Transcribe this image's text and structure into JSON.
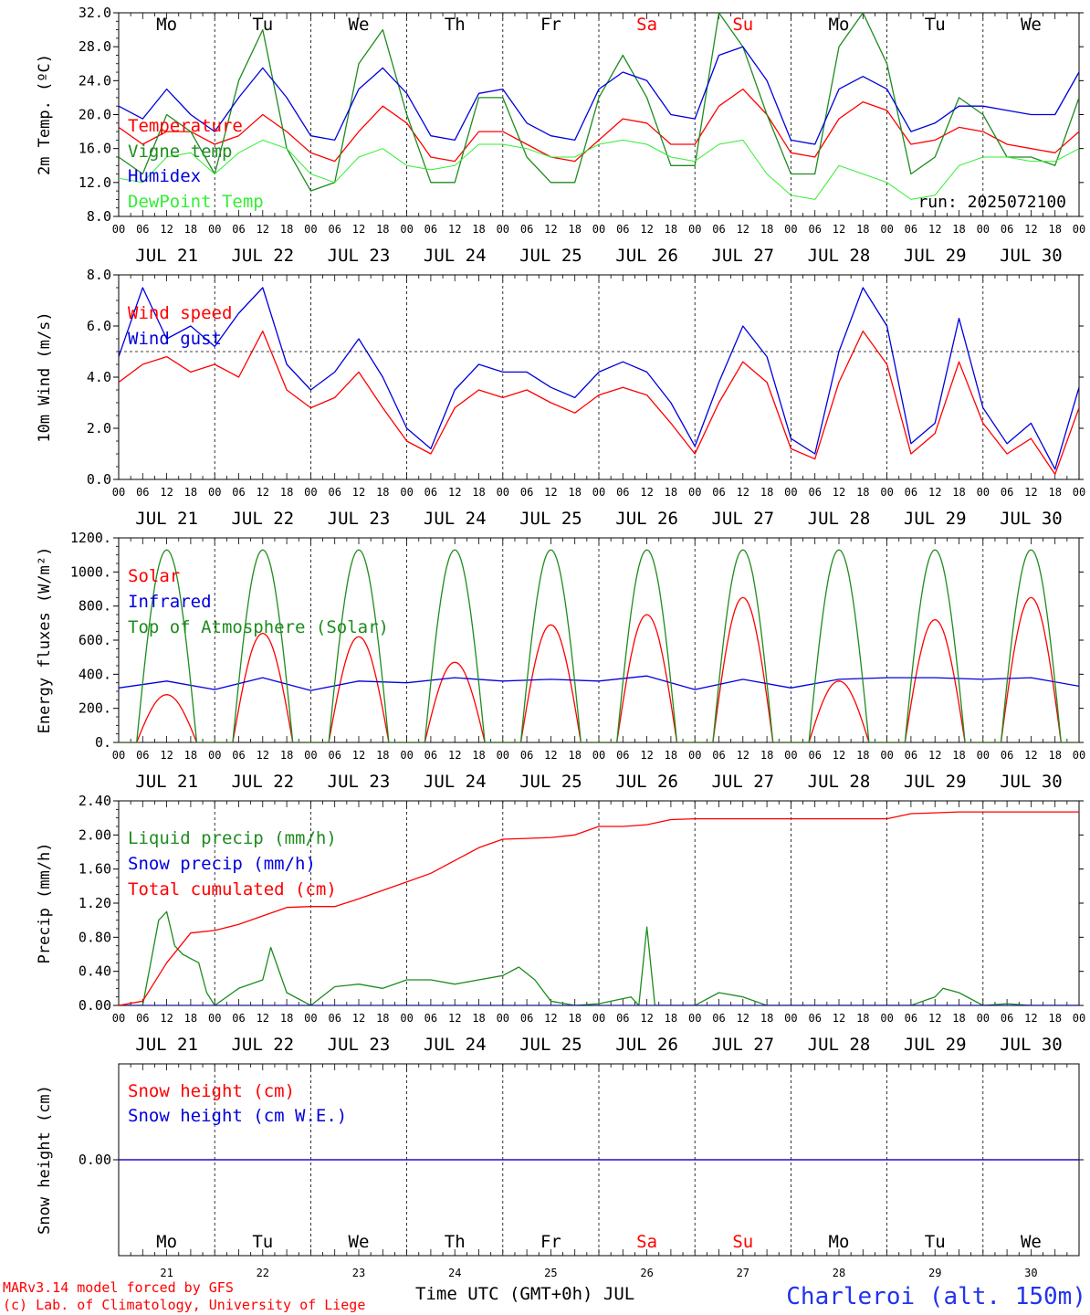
{
  "colors": {
    "red": "#ff0000",
    "green": "#1e8c1e",
    "blue": "#0000dd",
    "light_green": "#33ee33",
    "axis": "#000000"
  },
  "days": {
    "labels": [
      "Mo",
      "Tu",
      "We",
      "Th",
      "Fr",
      "Sa",
      "Su",
      "Mo",
      "Tu",
      "We"
    ],
    "weekend": [
      false,
      false,
      false,
      false,
      false,
      true,
      true,
      false,
      false,
      false
    ],
    "dates": [
      "JUL 21",
      "JUL 22",
      "JUL 23",
      "JUL 24",
      "JUL 25",
      "JUL 26",
      "JUL 27",
      "JUL 28",
      "JUL 29",
      "JUL 30"
    ],
    "numbers": [
      "21",
      "22",
      "23",
      "24",
      "25",
      "26",
      "27",
      "28",
      "29",
      "30"
    ]
  },
  "hour_ticks": [
    "00",
    "06",
    "12",
    "18"
  ],
  "hour_end": "00",
  "run_label": "run: 2025072100",
  "footer": {
    "model": "MARv3.14 model forced by GFS",
    "copyright": "(c) Lab. of Climatology, University of Liege",
    "time_axis": "Time UTC (GMT+0h) JUL",
    "station": "Charleroi (alt. 150m)"
  },
  "chart_data": [
    {
      "type": "line",
      "id": "temp",
      "ylabel": "2m Temp. (ºC)",
      "ylim": [
        8,
        32
      ],
      "ytick_labels": [
        "8.0",
        "12.0",
        "16.0",
        "20.0",
        "24.0",
        "28.0",
        "32.0"
      ],
      "series": [
        {
          "name": "Temperature",
          "color": "red",
          "x": [
            0,
            6,
            12,
            18,
            24,
            30,
            36,
            42,
            48,
            54,
            60,
            66,
            72,
            78,
            84,
            90,
            96,
            102,
            108,
            114,
            120,
            126,
            132,
            138,
            144,
            150,
            156,
            162,
            168,
            174,
            180,
            186,
            192,
            198,
            204,
            210,
            216,
            222,
            228,
            234,
            240
          ],
          "y": [
            18.5,
            16.5,
            18,
            18,
            16.5,
            17.5,
            20,
            18,
            15.5,
            14.5,
            18,
            21,
            19,
            15,
            14.5,
            18,
            18,
            16.5,
            15,
            14.5,
            17,
            19.5,
            19,
            16.5,
            16.5,
            21,
            23,
            20,
            15.5,
            15,
            19.5,
            21.5,
            20.5,
            16.5,
            17,
            18.5,
            18,
            16.5,
            16,
            15.5,
            18
          ]
        },
        {
          "name": "Vigne temp",
          "color": "green",
          "x": [
            0,
            6,
            12,
            18,
            24,
            30,
            36,
            42,
            48,
            54,
            60,
            66,
            72,
            78,
            84,
            90,
            96,
            102,
            108,
            114,
            120,
            126,
            132,
            138,
            144,
            150,
            156,
            162,
            168,
            174,
            180,
            186,
            192,
            198,
            204,
            210,
            216,
            222,
            228,
            234,
            240
          ],
          "y": [
            15,
            13,
            20,
            18,
            13,
            24,
            30,
            16,
            11,
            12,
            26,
            30,
            20,
            12,
            12,
            22,
            22,
            15,
            12,
            12,
            22,
            27,
            22,
            14,
            14,
            32,
            28,
            20,
            13,
            13,
            28,
            32,
            26,
            13,
            15,
            22,
            20,
            15,
            15,
            14,
            22
          ]
        },
        {
          "name": "Humidex",
          "color": "blue",
          "x": [
            0,
            6,
            12,
            18,
            24,
            30,
            36,
            42,
            48,
            54,
            60,
            66,
            72,
            78,
            84,
            90,
            96,
            102,
            108,
            114,
            120,
            126,
            132,
            138,
            144,
            150,
            156,
            162,
            168,
            174,
            180,
            186,
            192,
            198,
            204,
            210,
            216,
            222,
            228,
            234,
            240
          ],
          "y": [
            21,
            19.5,
            23,
            20,
            18,
            22,
            25.5,
            22,
            17.5,
            17,
            23,
            25.5,
            22.5,
            17.5,
            17,
            22.5,
            23,
            19,
            17.5,
            17,
            23,
            25,
            24,
            20,
            19.5,
            27,
            28,
            24,
            17,
            16.5,
            23,
            24.5,
            23,
            18,
            19,
            21,
            21,
            20.5,
            20,
            20,
            25
          ]
        },
        {
          "name": "DewPoint Temp",
          "color": "light_green",
          "x": [
            0,
            6,
            12,
            18,
            24,
            30,
            36,
            42,
            48,
            54,
            60,
            66,
            72,
            78,
            84,
            90,
            96,
            102,
            108,
            114,
            120,
            126,
            132,
            138,
            144,
            150,
            156,
            162,
            168,
            174,
            180,
            186,
            192,
            198,
            204,
            210,
            216,
            222,
            228,
            234,
            240
          ],
          "y": [
            12.5,
            12,
            15,
            15.5,
            13,
            15.5,
            17,
            16,
            13,
            12,
            15,
            16,
            14,
            13.5,
            14,
            16.5,
            16.5,
            16,
            15,
            15,
            16.5,
            17,
            16.5,
            15,
            14.5,
            16.5,
            17,
            13,
            10.5,
            10,
            14,
            13,
            12,
            10,
            10.5,
            14,
            15,
            15,
            14.5,
            14.5,
            16
          ]
        }
      ]
    },
    {
      "type": "line",
      "id": "wind",
      "ylabel": "10m Wind (m/s)",
      "ylim": [
        0,
        8
      ],
      "ytick_labels": [
        "0.0",
        "2.0",
        "4.0",
        "6.0",
        "8.0"
      ],
      "ref_line": 5,
      "series": [
        {
          "name": "Wind speed",
          "color": "red",
          "x": [
            0,
            6,
            12,
            18,
            24,
            30,
            36,
            42,
            48,
            54,
            60,
            66,
            72,
            78,
            84,
            90,
            96,
            102,
            108,
            114,
            120,
            126,
            132,
            138,
            144,
            150,
            156,
            162,
            168,
            174,
            180,
            186,
            192,
            198,
            204,
            210,
            216,
            222,
            228,
            234,
            240
          ],
          "y": [
            3.8,
            4.5,
            4.8,
            4.2,
            4.5,
            4.0,
            5.8,
            3.5,
            2.8,
            3.2,
            4.2,
            2.8,
            1.5,
            1.0,
            2.8,
            3.5,
            3.2,
            3.5,
            3.0,
            2.6,
            3.3,
            3.6,
            3.3,
            2.2,
            1.0,
            3.0,
            4.6,
            3.8,
            1.2,
            0.8,
            3.8,
            5.8,
            4.5,
            1.0,
            1.8,
            4.6,
            2.2,
            1.0,
            1.6,
            0.2,
            2.8
          ]
        },
        {
          "name": "Wind gust",
          "color": "blue",
          "x": [
            0,
            6,
            12,
            18,
            24,
            30,
            36,
            42,
            48,
            54,
            60,
            66,
            72,
            78,
            84,
            90,
            96,
            102,
            108,
            114,
            120,
            126,
            132,
            138,
            144,
            150,
            156,
            162,
            168,
            174,
            180,
            186,
            192,
            198,
            204,
            210,
            216,
            222,
            228,
            234,
            240
          ],
          "y": [
            4.8,
            7.5,
            5.5,
            6.0,
            5.2,
            6.5,
            7.5,
            4.5,
            3.5,
            4.2,
            5.5,
            4.0,
            2.0,
            1.2,
            3.5,
            4.5,
            4.2,
            4.2,
            3.6,
            3.2,
            4.2,
            4.6,
            4.2,
            3.0,
            1.3,
            3.8,
            6.0,
            4.8,
            1.6,
            1.0,
            5.0,
            7.5,
            6.0,
            1.4,
            2.2,
            6.3,
            2.8,
            1.4,
            2.2,
            0.4,
            3.6
          ]
        }
      ]
    },
    {
      "type": "line",
      "id": "energy",
      "ylabel": "Energy fluxes (W/m²)",
      "ylim": [
        0,
        1200
      ],
      "ytick_labels": [
        "0.",
        "200.",
        "400.",
        "600.",
        "800.",
        "1000.",
        "1200."
      ],
      "series": [
        {
          "name": "Solar",
          "color": "red",
          "daily_peak": [
            280,
            640,
            620,
            470,
            690,
            750,
            850,
            360,
            720,
            850
          ]
        },
        {
          "name": "Infrared",
          "color": "blue",
          "x": [
            0,
            12,
            24,
            36,
            48,
            60,
            72,
            84,
            96,
            108,
            120,
            132,
            144,
            156,
            168,
            180,
            192,
            204,
            216,
            228,
            240
          ],
          "y": [
            320,
            360,
            310,
            380,
            305,
            360,
            350,
            380,
            360,
            370,
            360,
            390,
            310,
            370,
            320,
            370,
            380,
            380,
            370,
            380,
            330
          ]
        },
        {
          "name": "Top of Atmosphere (Solar)",
          "color": "green",
          "daily_peak": [
            1130,
            1130,
            1130,
            1130,
            1130,
            1130,
            1130,
            1130,
            1130,
            1130
          ]
        }
      ]
    },
    {
      "type": "line",
      "id": "precip",
      "ylabel": "Precip (mm/h)",
      "ylim": [
        0,
        2.4
      ],
      "ytick_labels": [
        "0.00",
        "0.40",
        "0.80",
        "1.20",
        "1.60",
        "2.00",
        "2.40"
      ],
      "series": [
        {
          "name": "Liquid precip (mm/h)",
          "color": "green",
          "x": [
            0,
            6,
            8,
            10,
            12,
            14,
            16,
            18,
            20,
            22,
            24,
            30,
            36,
            38,
            42,
            48,
            54,
            60,
            66,
            72,
            78,
            84,
            90,
            96,
            100,
            104,
            108,
            114,
            120,
            128,
            130,
            132,
            134,
            136,
            144,
            150,
            156,
            162,
            168,
            186,
            192,
            198,
            204,
            206,
            210,
            216,
            222,
            228,
            240
          ],
          "y": [
            0,
            0,
            0.5,
            1.0,
            1.1,
            0.7,
            0.6,
            0.55,
            0.5,
            0.15,
            0,
            0.2,
            0.3,
            0.68,
            0.15,
            0,
            0.22,
            0.25,
            0.2,
            0.3,
            0.3,
            0.25,
            0.3,
            0.35,
            0.45,
            0.3,
            0.05,
            0,
            0.02,
            0.1,
            0,
            0.92,
            0,
            0,
            0,
            0.15,
            0.1,
            0,
            0,
            0,
            0,
            0,
            0.1,
            0.2,
            0.15,
            0,
            0.02,
            0,
            0
          ]
        },
        {
          "name": "Snow precip (mm/h)",
          "color": "blue",
          "x": [
            0,
            240
          ],
          "y": [
            0,
            0
          ]
        },
        {
          "name": "Total cumulated (cm)",
          "color": "red",
          "x": [
            0,
            6,
            12,
            18,
            24,
            30,
            36,
            42,
            48,
            54,
            60,
            66,
            72,
            78,
            84,
            90,
            96,
            102,
            108,
            114,
            120,
            126,
            132,
            138,
            144,
            150,
            156,
            162,
            168,
            174,
            180,
            186,
            192,
            198,
            204,
            210,
            216,
            222,
            228,
            234,
            240
          ],
          "y": [
            0,
            0.05,
            0.5,
            0.85,
            0.88,
            0.95,
            1.05,
            1.15,
            1.16,
            1.16,
            1.25,
            1.35,
            1.45,
            1.55,
            1.7,
            1.85,
            1.95,
            1.96,
            1.97,
            2.0,
            2.1,
            2.1,
            2.12,
            2.18,
            2.19,
            2.19,
            2.19,
            2.19,
            2.19,
            2.19,
            2.19,
            2.19,
            2.19,
            2.25,
            2.26,
            2.27,
            2.27,
            2.27,
            2.27,
            2.27,
            2.27
          ]
        }
      ]
    },
    {
      "type": "line",
      "id": "snow",
      "ylabel": "Snow height (cm)",
      "ylim": [
        -1,
        1
      ],
      "ytick_labels": [
        "0.00"
      ],
      "series": [
        {
          "name": "Snow height (cm)",
          "color": "red",
          "x": [
            0,
            240
          ],
          "y": [
            0,
            0
          ]
        },
        {
          "name": "Snow height (cm W.E.)",
          "color": "blue",
          "x": [
            0,
            240
          ],
          "y": [
            0,
            0
          ]
        }
      ]
    }
  ]
}
